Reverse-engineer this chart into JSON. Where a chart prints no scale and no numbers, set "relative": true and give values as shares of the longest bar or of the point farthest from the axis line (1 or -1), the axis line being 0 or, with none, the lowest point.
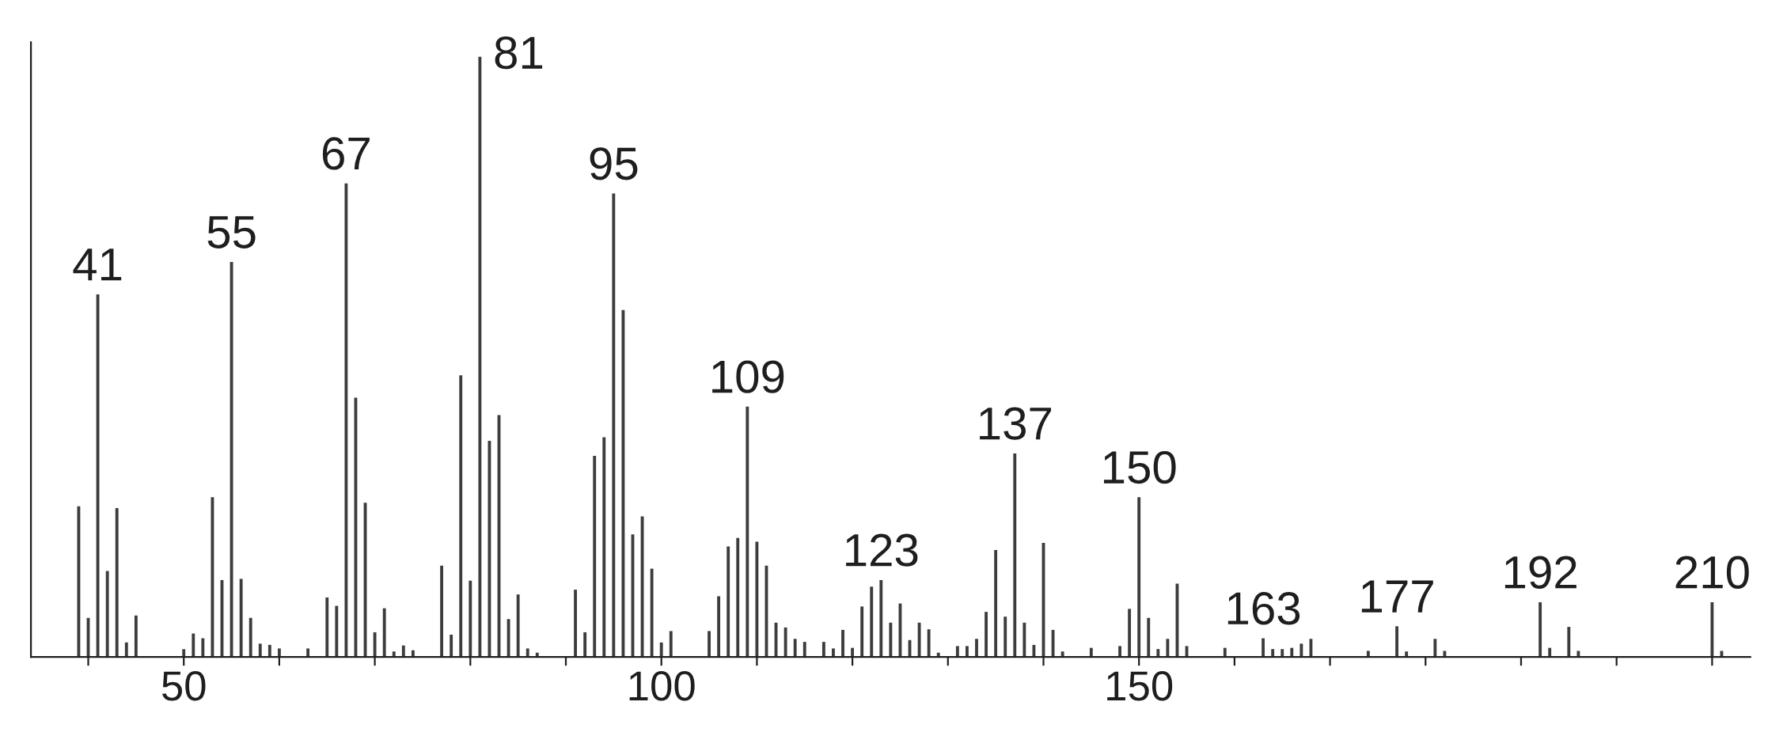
{
  "chart_data": {
    "type": "bar",
    "relative": true,
    "color": "#3c3c3c",
    "x": [
      39,
      40,
      41,
      42,
      43,
      44,
      45,
      50,
      51,
      52,
      53,
      54,
      55,
      56,
      57,
      58,
      59,
      60,
      63,
      65,
      66,
      67,
      68,
      69,
      70,
      71,
      72,
      73,
      74,
      77,
      78,
      79,
      80,
      81,
      82,
      83,
      84,
      85,
      86,
      87,
      91,
      92,
      93,
      94,
      95,
      96,
      97,
      98,
      99,
      100,
      101,
      105,
      106,
      107,
      108,
      109,
      110,
      111,
      112,
      113,
      114,
      115,
      117,
      118,
      119,
      120,
      121,
      122,
      123,
      124,
      125,
      126,
      127,
      128,
      129,
      131,
      132,
      133,
      134,
      135,
      136,
      137,
      138,
      139,
      140,
      141,
      142,
      145,
      148,
      149,
      150,
      151,
      152,
      153,
      154,
      155,
      159,
      163,
      164,
      165,
      166,
      167,
      168,
      174,
      177,
      178,
      181,
      182,
      192,
      193,
      195,
      196,
      210,
      211
    ],
    "values": [
      0.251,
      0.065,
      0.604,
      0.143,
      0.248,
      0.024,
      0.069,
      0.013,
      0.039,
      0.031,
      0.266,
      0.128,
      0.658,
      0.13,
      0.065,
      0.022,
      0.02,
      0.014,
      0.014,
      0.099,
      0.085,
      0.789,
      0.432,
      0.257,
      0.041,
      0.081,
      0.009,
      0.019,
      0.011,
      0.152,
      0.037,
      0.469,
      0.127,
      1.0,
      0.36,
      0.403,
      0.063,
      0.104,
      0.014,
      0.007,
      0.112,
      0.041,
      0.335,
      0.366,
      0.772,
      0.578,
      0.204,
      0.234,
      0.147,
      0.024,
      0.043,
      0.043,
      0.101,
      0.184,
      0.198,
      0.417,
      0.192,
      0.152,
      0.057,
      0.049,
      0.03,
      0.025,
      0.025,
      0.014,
      0.045,
      0.015,
      0.084,
      0.117,
      0.128,
      0.057,
      0.089,
      0.028,
      0.057,
      0.046,
      0.007,
      0.018,
      0.018,
      0.03,
      0.075,
      0.178,
      0.067,
      0.339,
      0.057,
      0.02,
      0.19,
      0.045,
      0.009,
      0.015,
      0.018,
      0.08,
      0.266,
      0.065,
      0.013,
      0.03,
      0.122,
      0.018,
      0.015,
      0.031,
      0.013,
      0.013,
      0.015,
      0.022,
      0.03,
      0.01,
      0.051,
      0.009,
      0.03,
      0.01,
      0.091,
      0.015,
      0.05,
      0.01,
      0.091,
      0.01
    ],
    "xlim": [
      34,
      214
    ],
    "xticks": [
      {
        "value": 40,
        "label": null
      },
      50,
      {
        "value": 60,
        "label": null
      },
      {
        "value": 70,
        "label": null
      },
      {
        "value": 80,
        "label": null
      },
      {
        "value": 90,
        "label": null
      },
      100,
      {
        "value": 110,
        "label": null
      },
      {
        "value": 120,
        "label": null
      },
      {
        "value": 130,
        "label": null
      },
      {
        "value": 140,
        "label": null
      },
      150,
      {
        "value": 160,
        "label": null
      },
      {
        "value": 170,
        "label": null
      },
      {
        "value": 180,
        "label": null
      },
      {
        "value": 190,
        "label": null
      },
      {
        "value": 200,
        "label": null
      },
      {
        "value": 210,
        "label": null
      }
    ],
    "annotations": [
      {
        "text": "41",
        "x": 41,
        "y": 0.604
      },
      {
        "text": "55",
        "x": 55,
        "y": 0.658
      },
      {
        "text": "67",
        "x": 67,
        "y": 0.789
      },
      {
        "text": "81",
        "x": 81,
        "y": 1.0
      },
      {
        "text": "95",
        "x": 95,
        "y": 0.772
      },
      {
        "text": "109",
        "x": 109,
        "y": 0.417
      },
      {
        "text": "123",
        "x": 123,
        "y": 0.128
      },
      {
        "text": "137",
        "x": 137,
        "y": 0.339
      },
      {
        "text": "150",
        "x": 150,
        "y": 0.266
      },
      {
        "text": "163",
        "x": 163,
        "y": 0.031
      },
      {
        "text": "177",
        "x": 177,
        "y": 0.051
      },
      {
        "text": "192",
        "x": 192,
        "y": 0.091
      },
      {
        "text": "210",
        "x": 210,
        "y": 0.091
      }
    ]
  }
}
